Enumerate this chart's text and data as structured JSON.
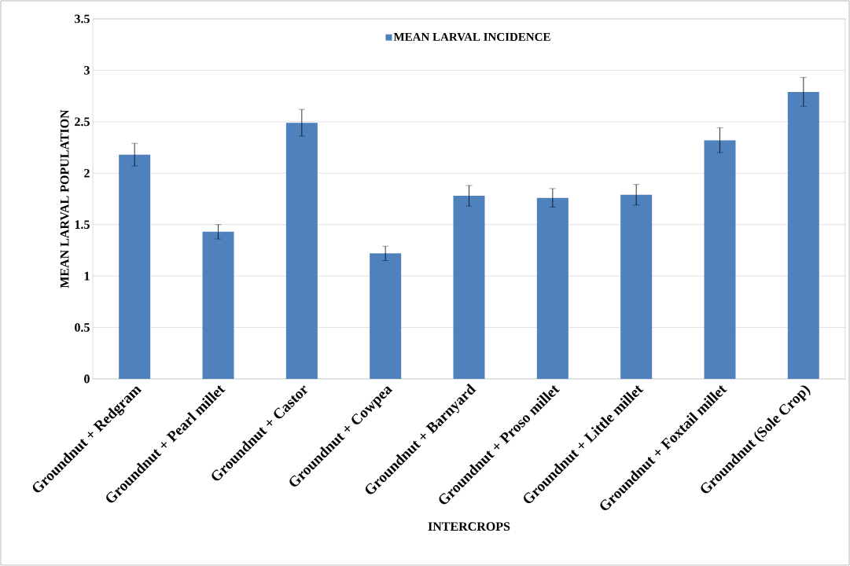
{
  "chart_data": {
    "type": "bar",
    "xlabel": "INTERCROPS",
    "ylabel": "MEAN LARVAL POPULATION",
    "categories": [
      "Groundnut + Redgram",
      "Groundnut +  Pearl millet",
      "Groundnut + Castor",
      "Groundnut + Cowpea",
      "Groundnut + Barnyard",
      "Groundnut + Proso millet",
      "Groundnut +  Little millet",
      "Groundnut + Foxtail millet",
      "Groundnut (Sole Crop)"
    ],
    "series": [
      {
        "name": "MEAN LARVAL INCIDENCE",
        "color": "#4f81bd",
        "values": [
          2.18,
          1.43,
          2.49,
          1.22,
          1.78,
          1.76,
          1.79,
          2.32,
          2.79
        ],
        "errors": [
          0.11,
          0.07,
          0.13,
          0.07,
          0.1,
          0.09,
          0.1,
          0.12,
          0.14
        ]
      }
    ],
    "ylim": [
      0,
      3.5
    ],
    "yticks": [
      0,
      0.5,
      1,
      1.5,
      2,
      2.5,
      3,
      3.5
    ],
    "grid": "y",
    "legend": "top"
  }
}
